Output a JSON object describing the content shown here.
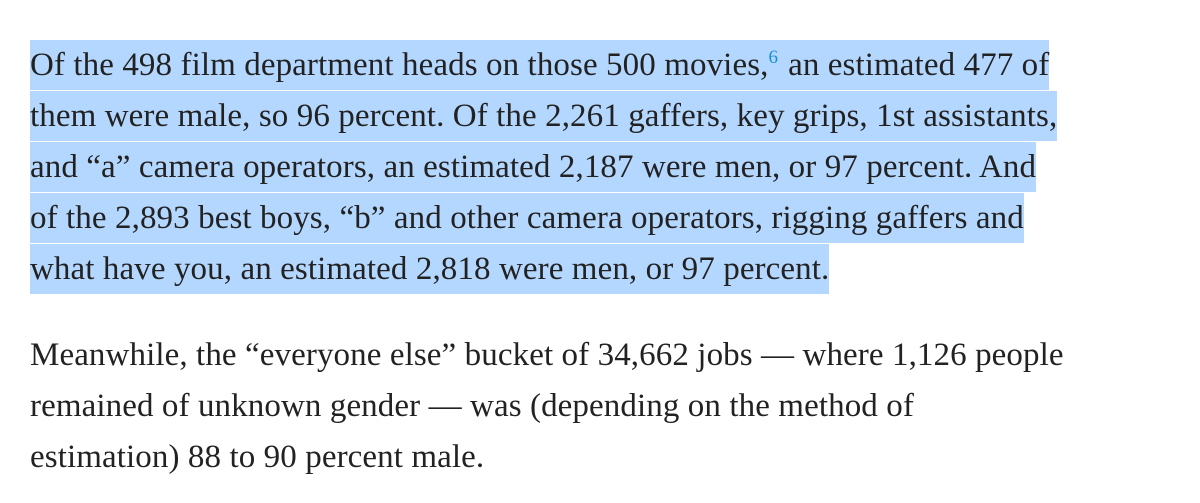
{
  "article": {
    "paragraph1": {
      "line1_before_footnote": "Of the 498 film department heads on those 500 movies,",
      "footnote_marker": "6",
      "line1_after_footnote": "an estimated 477 of",
      "line2": "them were male, so 96 percent. Of the 2,261 gaffers, key grips, 1st assistants,",
      "line3": "and “a” camera operators, an estimated 2,187 were men, or 97 percent. And",
      "line4": "of the 2,893 best boys, “b” and other camera operators, rigging gaffers and",
      "line5": "what have you, an estimated 2,818 were men, or 97 percent."
    },
    "paragraph2": {
      "line1": "Meanwhile, the “everyone else” bucket of 34,662 jobs — where 1,126 people",
      "line2": "remained of unknown gender — was (depending on the method of",
      "line3": "estimation) 88 to 90 percent male."
    }
  },
  "colors": {
    "selection_highlight": "#b4d7ff",
    "footnote_link": "#1a8fd6",
    "text": "#222222"
  }
}
